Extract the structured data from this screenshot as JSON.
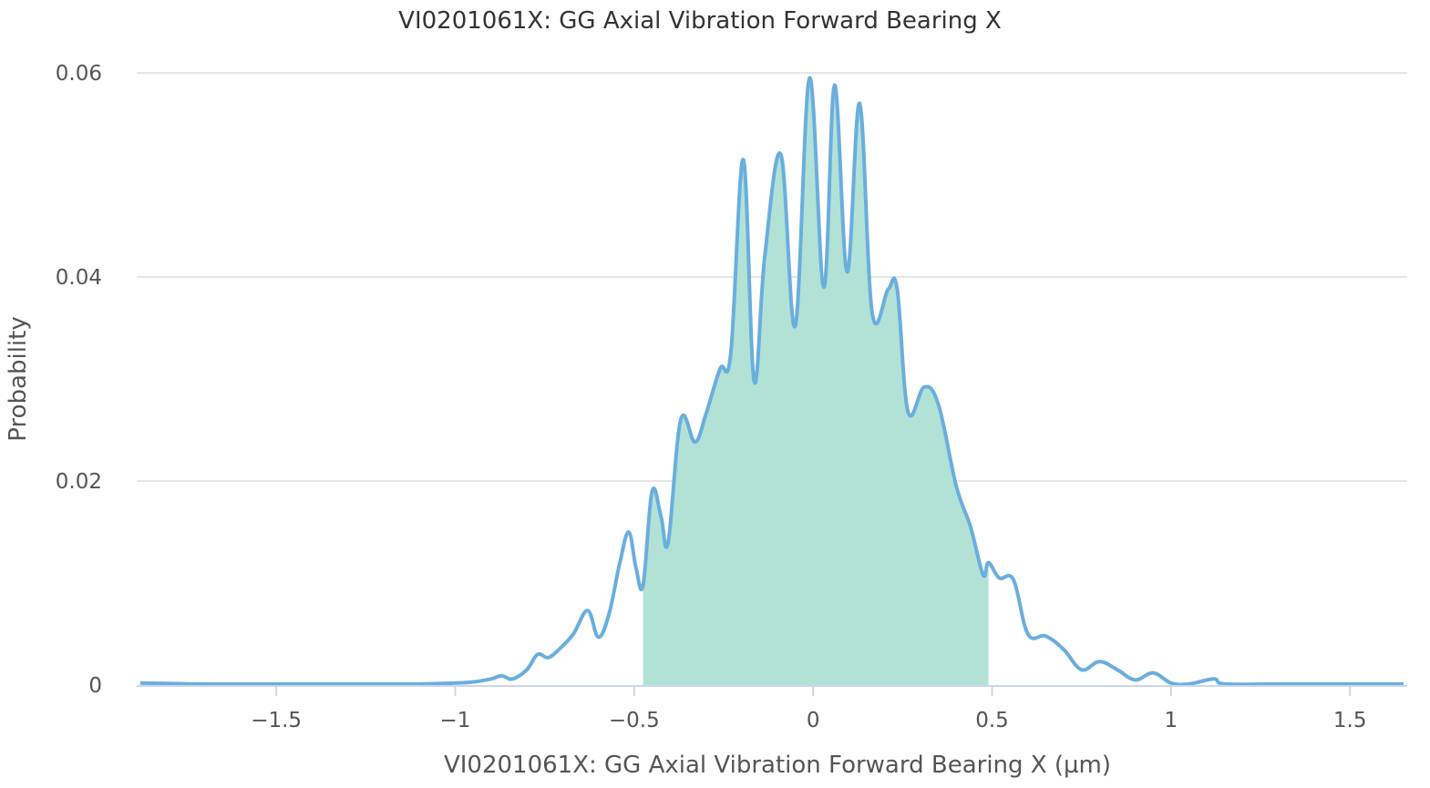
{
  "chart_data": {
    "type": "area",
    "title": "VI0201061X: GG Axial Vibration Forward Bearing X",
    "xlabel": "VI0201061X: GG Axial Vibration Forward Bearing X (µm)",
    "ylabel": "Probability",
    "xlim": [
      -1.89,
      1.66
    ],
    "ylim": [
      0,
      0.06
    ],
    "x_ticks": [
      {
        "value": -1.5,
        "label": "−1.5"
      },
      {
        "value": -1,
        "label": "−1"
      },
      {
        "value": -0.5,
        "label": "−0.5"
      },
      {
        "value": 0,
        "label": "0"
      },
      {
        "value": 0.5,
        "label": "0.5"
      },
      {
        "value": 1,
        "label": "1"
      },
      {
        "value": 1.5,
        "label": "1.5"
      }
    ],
    "y_ticks": [
      {
        "value": 0,
        "label": "0"
      },
      {
        "value": 0.02,
        "label": "0.02"
      },
      {
        "value": 0.04,
        "label": "0.04"
      },
      {
        "value": 0.06,
        "label": "0.06"
      }
    ],
    "grid": true,
    "shaded_range": [
      -0.475,
      0.49
    ],
    "colors": {
      "line": "#6aaede",
      "fill": "#b2e2d6",
      "grid": "#e6e6e6",
      "axis": "#ccd6eb"
    },
    "series": [
      {
        "values": [
          [
            -1.88,
            0.0002
          ],
          [
            -1.7,
            0.0001
          ],
          [
            -1.5,
            0.0001
          ],
          [
            -1.3,
            0.0001
          ],
          [
            -1.1,
            0.0001
          ],
          [
            -1.0,
            0.0002
          ],
          [
            -0.95,
            0.0003
          ],
          [
            -0.9,
            0.0006
          ],
          [
            -0.87,
            0.0009
          ],
          [
            -0.84,
            0.0006
          ],
          [
            -0.8,
            0.0015
          ],
          [
            -0.77,
            0.003
          ],
          [
            -0.74,
            0.0027
          ],
          [
            -0.71,
            0.0035
          ],
          [
            -0.67,
            0.005
          ],
          [
            -0.63,
            0.0073
          ],
          [
            -0.6,
            0.0047
          ],
          [
            -0.57,
            0.007
          ],
          [
            -0.54,
            0.012
          ],
          [
            -0.515,
            0.015
          ],
          [
            -0.495,
            0.0115
          ],
          [
            -0.475,
            0.0098
          ],
          [
            -0.45,
            0.019
          ],
          [
            -0.425,
            0.0165
          ],
          [
            -0.405,
            0.014
          ],
          [
            -0.37,
            0.026
          ],
          [
            -0.33,
            0.0238
          ],
          [
            -0.3,
            0.0265
          ],
          [
            -0.26,
            0.031
          ],
          [
            -0.23,
            0.0325
          ],
          [
            -0.195,
            0.0515
          ],
          [
            -0.165,
            0.0298
          ],
          [
            -0.135,
            0.042
          ],
          [
            -0.09,
            0.052
          ],
          [
            -0.05,
            0.0352
          ],
          [
            -0.01,
            0.0595
          ],
          [
            0.03,
            0.039
          ],
          [
            0.06,
            0.0588
          ],
          [
            0.095,
            0.0405
          ],
          [
            0.13,
            0.057
          ],
          [
            0.165,
            0.0365
          ],
          [
            0.21,
            0.0388
          ],
          [
            0.235,
            0.0388
          ],
          [
            0.265,
            0.0268
          ],
          [
            0.31,
            0.0292
          ],
          [
            0.35,
            0.0275
          ],
          [
            0.4,
            0.0195
          ],
          [
            0.44,
            0.0155
          ],
          [
            0.475,
            0.0108
          ],
          [
            0.49,
            0.012
          ],
          [
            0.52,
            0.0105
          ],
          [
            0.56,
            0.0103
          ],
          [
            0.6,
            0.005
          ],
          [
            0.65,
            0.0048
          ],
          [
            0.7,
            0.0035
          ],
          [
            0.75,
            0.0015
          ],
          [
            0.8,
            0.0023
          ],
          [
            0.85,
            0.0015
          ],
          [
            0.9,
            0.0005
          ],
          [
            0.95,
            0.0012
          ],
          [
            1.0,
            0.0002
          ],
          [
            1.05,
            0.0001
          ],
          [
            1.12,
            0.0006
          ],
          [
            1.15,
            0.0001
          ],
          [
            1.3,
            0.0001
          ],
          [
            1.5,
            0.0001
          ],
          [
            1.65,
            0.0001
          ]
        ]
      }
    ]
  }
}
